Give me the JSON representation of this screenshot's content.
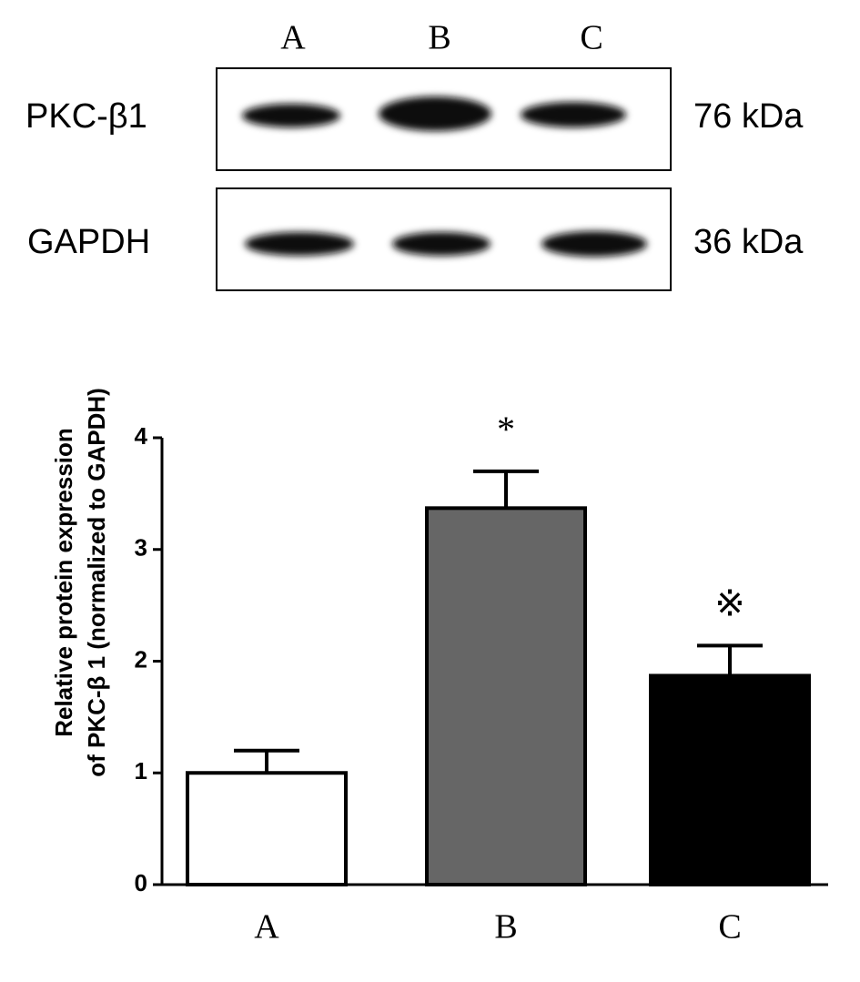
{
  "blot": {
    "lanes": [
      "A",
      "B",
      "C"
    ],
    "rows": [
      {
        "label": "PKC-β1",
        "size": "76 kDa"
      },
      {
        "label": "GAPDH",
        "size": "36 kDa"
      }
    ]
  },
  "chart_data": {
    "type": "bar",
    "y_label": [
      "Relative protein expression",
      "of PKC-β 1 (normalized to GAPDH)"
    ],
    "categories": [
      "A",
      "B",
      "C"
    ],
    "values": [
      1.0,
      3.37,
      1.87
    ],
    "errors": [
      0.2,
      0.33,
      0.27
    ],
    "colors": [
      "#ffffff",
      "#666666",
      "#000000"
    ],
    "annotations": [
      null,
      "*",
      "※"
    ],
    "ylim": [
      0,
      4
    ],
    "yticks": [
      0,
      1,
      2,
      3,
      4
    ]
  }
}
